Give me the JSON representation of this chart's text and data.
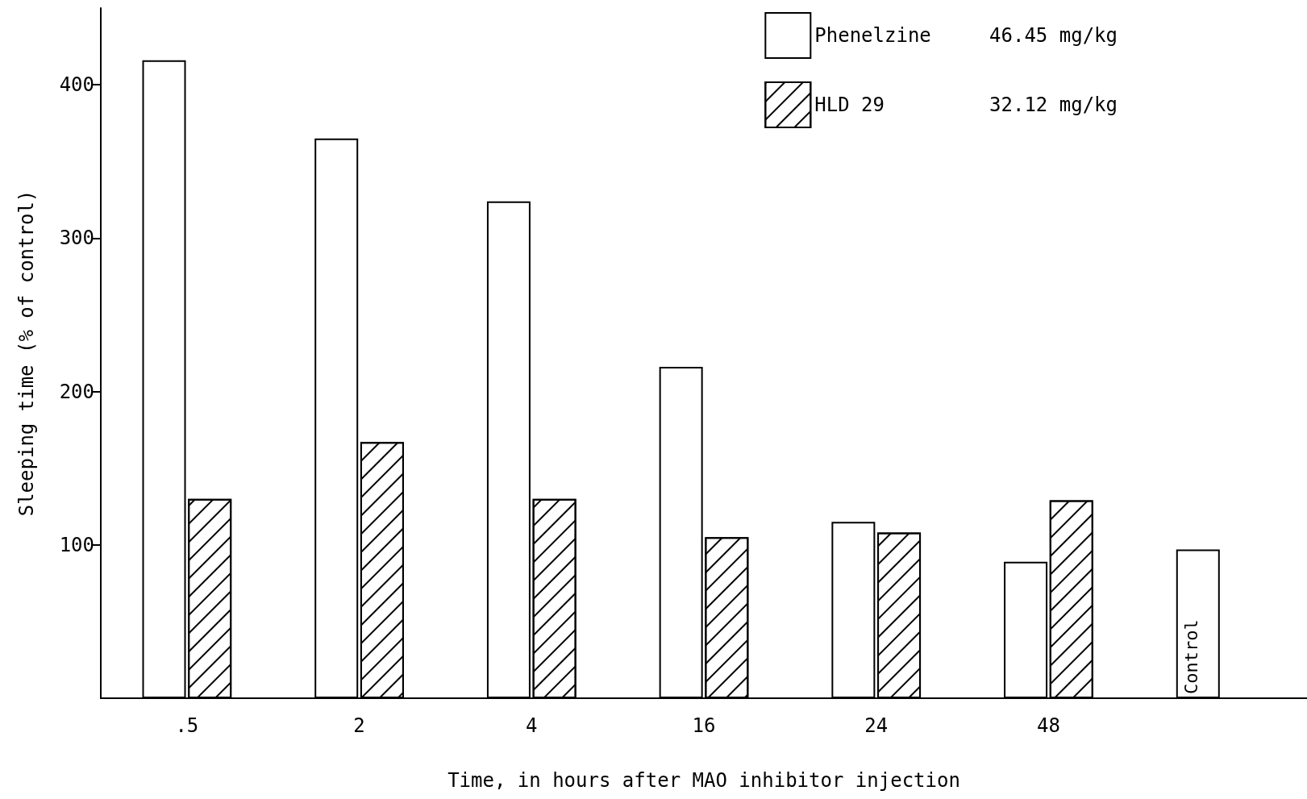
{
  "chart_data": {
    "type": "bar",
    "xlabel": "Time, in hours after MAO inhibitor injection",
    "ylabel": "Sleeping time (% of control)",
    "categories": [
      ".5",
      "2",
      "4",
      "16",
      "24",
      "48",
      null
    ],
    "series": [
      {
        "name": "Phenelzine     46.45 mg/kg",
        "color": "#ffffff",
        "values": [
          416,
          365,
          324,
          216,
          115,
          89,
          null
        ]
      },
      {
        "name": "HLD 29         32.12 mg/kg",
        "color": "#000000",
        "values": [
          130,
          167,
          130,
          105,
          108,
          129,
          null
        ]
      },
      {
        "name": "Control",
        "color": "#ffffff",
        "values": [
          null,
          null,
          null,
          null,
          null,
          null,
          97
        ]
      }
    ],
    "ylim": [
      0,
      450
    ],
    "yticks": [
      100,
      200,
      300,
      400
    ],
    "grid": false,
    "legend": "top right"
  }
}
